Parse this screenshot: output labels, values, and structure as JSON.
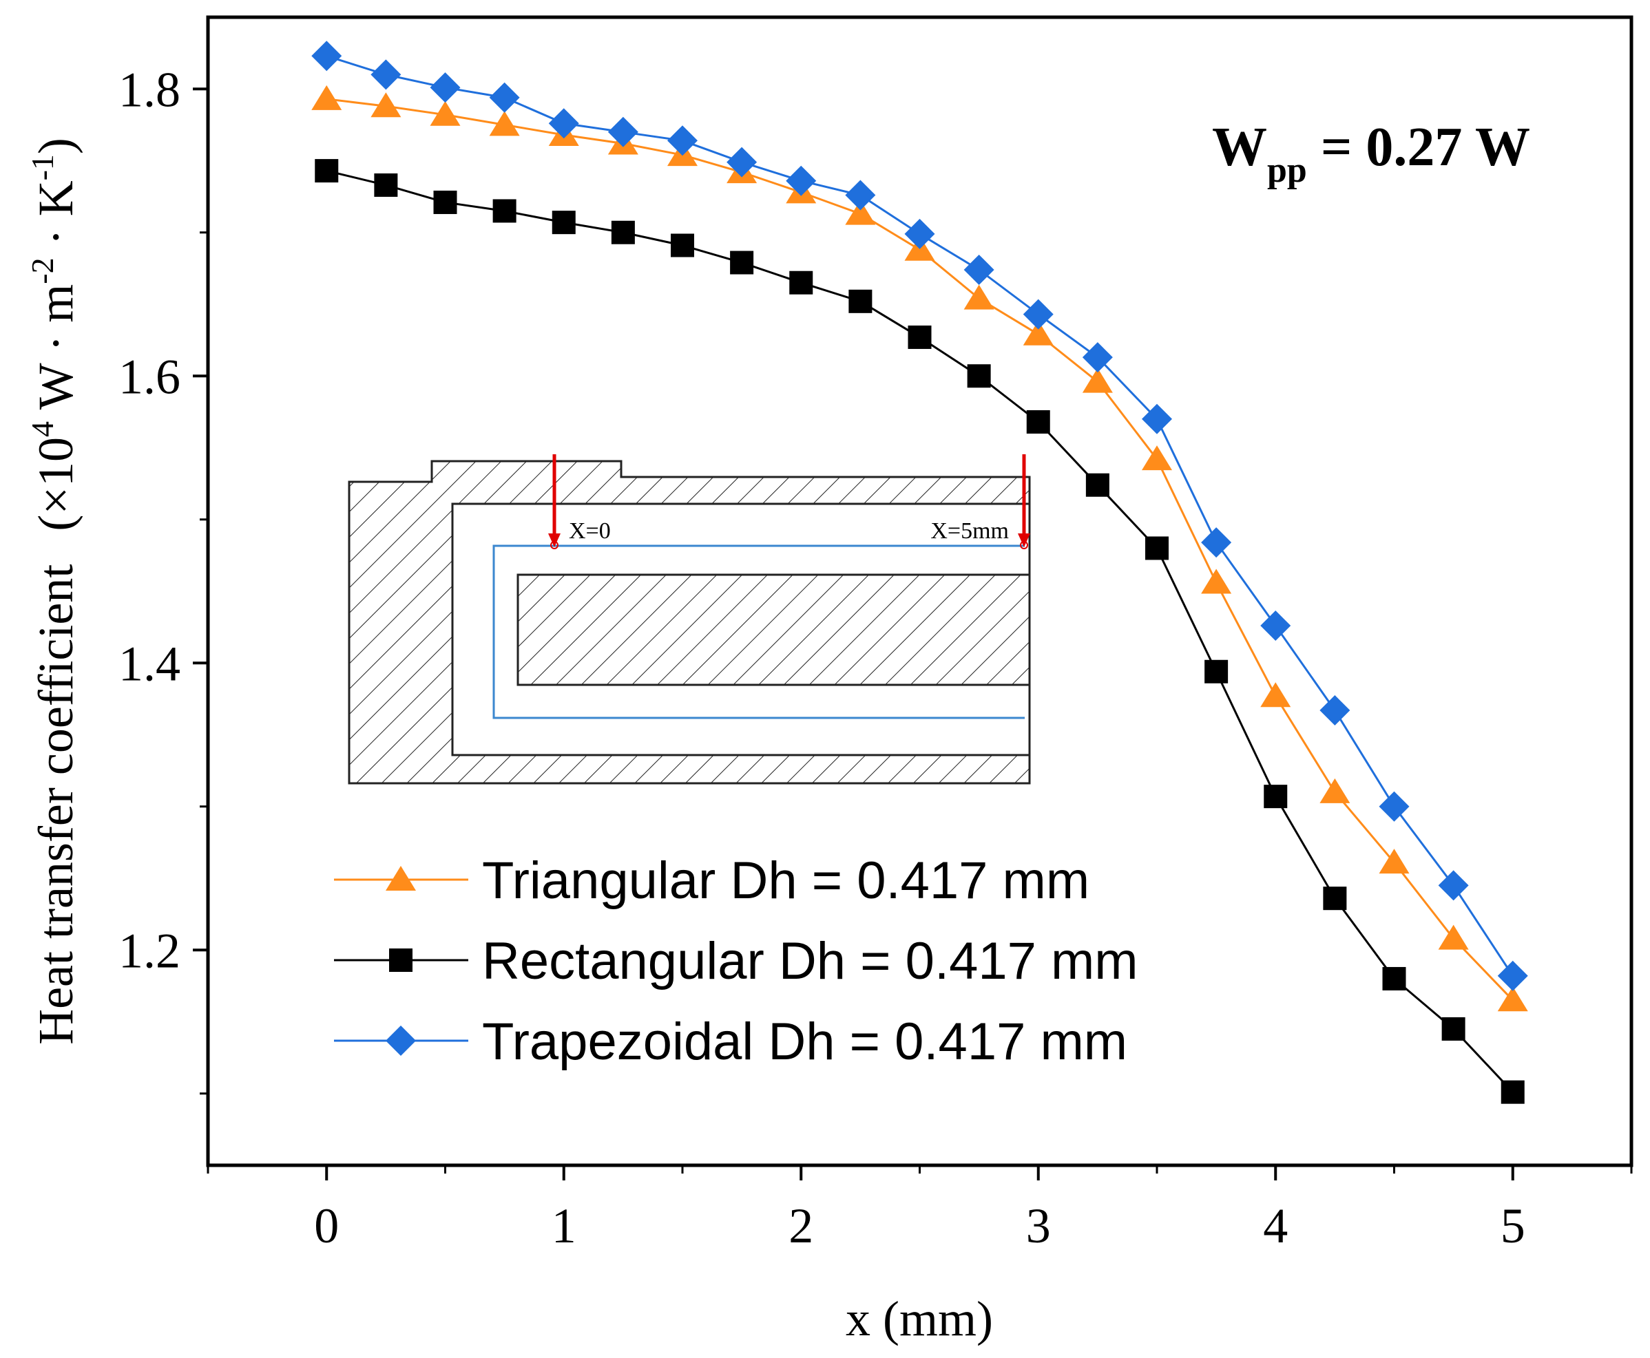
{
  "chart_data": {
    "type": "line",
    "title": "",
    "xlabel": "x (mm)",
    "ylabel_main": "Heat transfer coefficient",
    "ylabel_units_prefix": "(×10",
    "ylabel_units_exp": "4",
    "ylabel_units_mid": " W · m",
    "ylabel_units_exp2": "-2",
    "ylabel_units_mid2": " · K",
    "ylabel_units_exp3": "-1",
    "ylabel_units_suffix": ")",
    "xlim": [
      -0.5,
      5.5
    ],
    "ylim": [
      1.05,
      1.85
    ],
    "xticks": [
      0,
      1,
      2,
      3,
      4,
      5
    ],
    "xtick_labels": [
      "0",
      "1",
      "2",
      "3",
      "4",
      "5"
    ],
    "yticks": [
      1.2,
      1.4,
      1.6,
      1.8
    ],
    "ytick_labels": [
      "1.2",
      "1.4",
      "1.6",
      "1.8"
    ],
    "grid": false,
    "legend_position": "bottom-left",
    "x": [
      0,
      0.25,
      0.5,
      0.75,
      1,
      1.25,
      1.5,
      1.75,
      2,
      2.25,
      2.5,
      2.75,
      3,
      3.25,
      3.5,
      3.75,
      4,
      4.25,
      4.5,
      4.75,
      5
    ],
    "series": [
      {
        "name": "Triangular Dh = 0.417 mm",
        "color": "#ff8c1a",
        "marker": "triangle",
        "values": [
          1.793,
          1.788,
          1.782,
          1.775,
          1.768,
          1.762,
          1.754,
          1.742,
          1.728,
          1.713,
          1.688,
          1.654,
          1.629,
          1.596,
          1.542,
          1.456,
          1.377,
          1.31,
          1.261,
          1.208,
          1.165
        ]
      },
      {
        "name": "Rectangular Dh = 0.417 mm",
        "color": "#000000",
        "marker": "square",
        "values": [
          1.743,
          1.733,
          1.721,
          1.715,
          1.707,
          1.7,
          1.691,
          1.679,
          1.665,
          1.652,
          1.627,
          1.6,
          1.568,
          1.524,
          1.48,
          1.394,
          1.307,
          1.236,
          1.18,
          1.145,
          1.101
        ]
      },
      {
        "name": "Trapezoidal Dh = 0.417 mm",
        "color": "#1f6fdc",
        "marker": "diamond",
        "values": [
          1.823,
          1.81,
          1.801,
          1.794,
          1.776,
          1.77,
          1.764,
          1.749,
          1.736,
          1.726,
          1.699,
          1.674,
          1.643,
          1.613,
          1.57,
          1.484,
          1.426,
          1.367,
          1.3,
          1.245,
          1.182
        ]
      }
    ],
    "annotations": {
      "power_main": "W",
      "power_sub": "pp",
      "power_value": " = 0.27 W",
      "inset_x0": "X=0",
      "inset_x5": "X=5mm"
    }
  }
}
